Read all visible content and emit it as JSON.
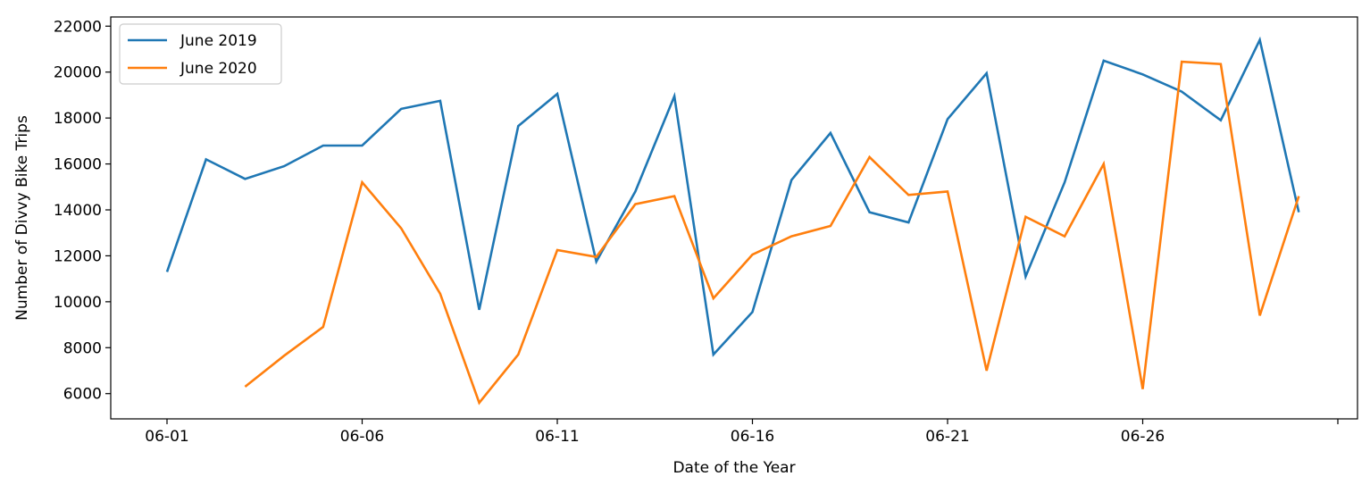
{
  "chart_data": {
    "type": "line",
    "title": "",
    "xlabel": "Date of the Year",
    "ylabel": "Number of Divvy Bike Trips",
    "x": [
      "06-01",
      "06-02",
      "06-03",
      "06-04",
      "06-05",
      "06-06",
      "06-07",
      "06-08",
      "06-09",
      "06-10",
      "06-11",
      "06-12",
      "06-13",
      "06-14",
      "06-15",
      "06-16",
      "06-17",
      "06-18",
      "06-19",
      "06-20",
      "06-21",
      "06-22",
      "06-23",
      "06-24",
      "06-25",
      "06-26",
      "06-27",
      "06-28",
      "06-29",
      "06-30"
    ],
    "x_ticks": [
      "06-01",
      "06-06",
      "06-11",
      "06-16",
      "06-21",
      "06-26"
    ],
    "ylim": [
      4900,
      22400
    ],
    "y_ticks": [
      6000,
      8000,
      10000,
      12000,
      14000,
      16000,
      18000,
      20000,
      22000
    ],
    "legend_position": "upper-left",
    "series": [
      {
        "name": "June 2019",
        "color": "#1f77b4",
        "values": [
          11300,
          16200,
          15350,
          15900,
          16800,
          16800,
          18400,
          18750,
          9650,
          17650,
          19050,
          11750,
          14800,
          18950,
          7700,
          9550,
          15300,
          17350,
          13900,
          13450,
          17950,
          19950,
          11100,
          15200,
          20500,
          19900,
          19150,
          17900,
          21400,
          13900
        ]
      },
      {
        "name": "June 2020",
        "color": "#ff7f0e",
        "values": [
          null,
          null,
          6300,
          7650,
          8900,
          15200,
          13200,
          10350,
          5600,
          7700,
          12250,
          11950,
          14250,
          14600,
          10150,
          12050,
          12850,
          13300,
          16300,
          14650,
          14800,
          7000,
          13700,
          12850,
          16000,
          6200,
          20450,
          20350,
          9400,
          14600
        ]
      }
    ]
  }
}
